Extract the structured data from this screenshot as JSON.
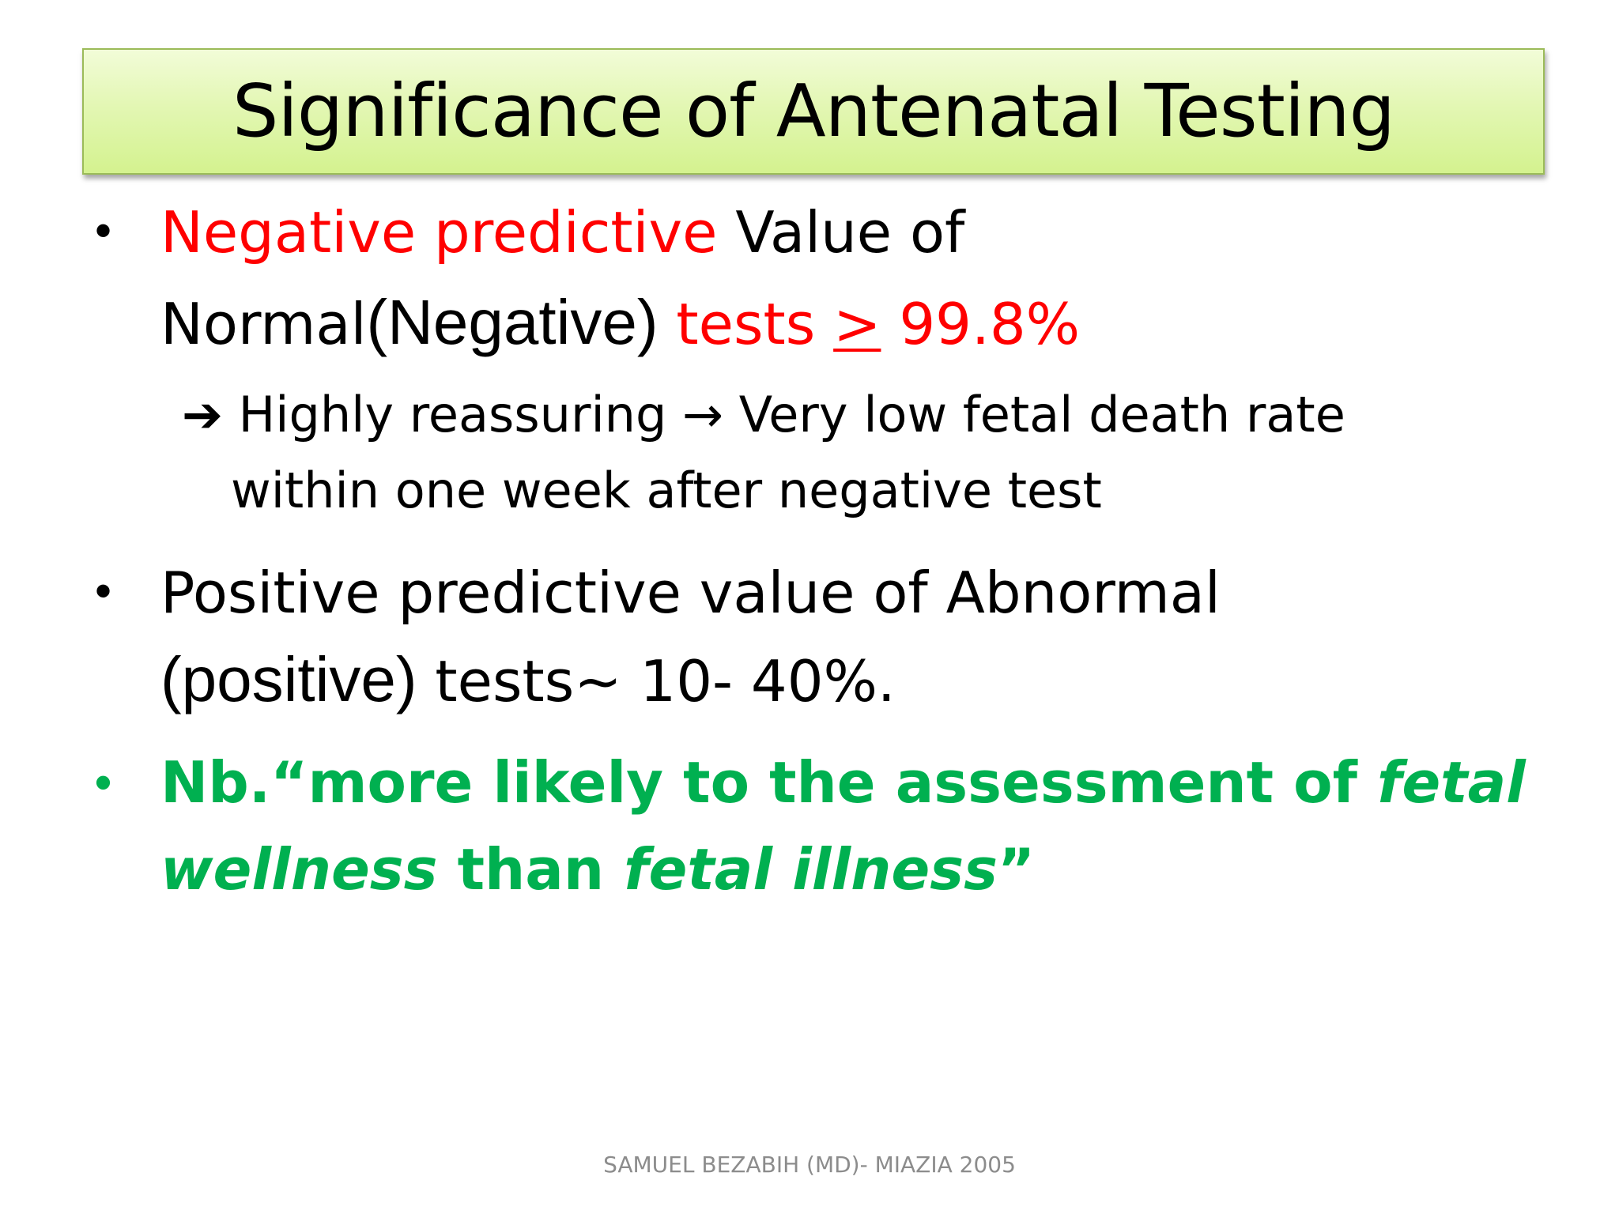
{
  "slide": {
    "title": "Significance of Antenatal Testing",
    "bullet_symbol": "•",
    "bullets": [
      {
        "line1_red": "Negative predictive",
        "line1_black": " Value of",
        "line2_normal": "Normal",
        "line2_paren": "(Negative)",
        "line2_red_a": " tests ",
        "line2_red_geq": ">",
        "line2_red_b": " 99.8%",
        "sub_arrow1": "➔",
        "sub_text1": " Highly reassuring ",
        "sub_arrow2": "→",
        "sub_text2": " Very low fetal death rate",
        "sub_line2": "within one week after negative test"
      },
      {
        "line1": "Positive predictive value of Abnormal",
        "line2_paren": "(positive)",
        "line2_rest": " tests~ 10- 40%."
      },
      {
        "line1_a": "Nb.“more likely to the assessment of ",
        "line1_italic": "fetal",
        "line2_italic": "wellness",
        "line2_mid": " than ",
        "line2_italic2": "fetal illness",
        "line2_end": "”"
      }
    ],
    "footer": "SAMUEL BEZABIH (MD)- MIAZIA 2005"
  },
  "colors": {
    "title_border": "#9bbb59",
    "title_fill": "#e3f7b4",
    "highlight_red": "#ff0000",
    "highlight_green": "#00b050",
    "footer_gray": "#8c8c8c"
  }
}
